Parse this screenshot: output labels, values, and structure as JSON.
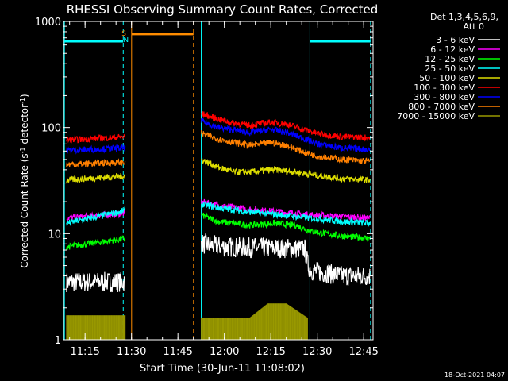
{
  "chart_data": {
    "type": "line",
    "title": "RHESSI Observing Summary Count Rates, Corrected",
    "xlabel": "Start Time (30-Jun-11 11:08:02)",
    "ylabel": "Corrected Count Rate (s⁻¹ detector⁻¹)",
    "ylabel_parts": {
      "main": "Corrected Count Rate (s",
      "sup1": "-1",
      "mid": " detector",
      "sup2": "-1",
      "end": ")"
    },
    "y_scale": "log",
    "ylim": [
      1,
      1000
    ],
    "xlim_minutes": [
      0,
      100
    ],
    "x_tick_labels": [
      "11:15",
      "11:30",
      "11:45",
      "12:00",
      "12:15",
      "12:30",
      "12:45"
    ],
    "x_tick_minutes": [
      6.97,
      21.97,
      36.97,
      51.97,
      66.97,
      81.97,
      96.97
    ],
    "y_tick_labels": [
      "1",
      "10",
      "100",
      "1000"
    ],
    "y_tick_values": [
      1,
      10,
      100,
      1000
    ],
    "legend_header": [
      "Det 1,3,4,5,6,9,",
      "Att 0"
    ],
    "legend_placement": "right",
    "footer_timestamp": "18-Oct-2021 04:07",
    "flags": [
      {
        "label": "S",
        "color": "#ff8c00",
        "minute": 19.5
      },
      {
        "label": "N",
        "color": "#00ffff",
        "minute": 20.2
      }
    ],
    "intervals": [
      {
        "kind": "night",
        "color": "#00ffff",
        "start": 0.3,
        "end": 19.3,
        "level": 650
      },
      {
        "kind": "saa",
        "color": "#ff8c00",
        "start": 22.0,
        "end": 42.0,
        "level": 760
      },
      {
        "kind": "night",
        "color": "#00ffff",
        "start": 79.6,
        "end": 99.2,
        "level": 650
      }
    ],
    "vlines": [
      {
        "minute": 0.3,
        "color": "#00ffff",
        "style": "solid"
      },
      {
        "minute": 19.3,
        "color": "#00ffff",
        "style": "dashed"
      },
      {
        "minute": 22.0,
        "color": "#ff8c00",
        "style": "solid"
      },
      {
        "minute": 42.0,
        "color": "#ff8c00",
        "style": "dashed"
      },
      {
        "minute": 44.5,
        "color": "#00ffff",
        "style": "solid"
      },
      {
        "minute": 79.6,
        "color": "#00ffff",
        "style": "solid"
      },
      {
        "minute": 99.2,
        "color": "#00ffff",
        "style": "dashed"
      }
    ],
    "series": [
      {
        "name": "3 - 6 keV",
        "color": "#ffffff",
        "seg1": {
          "start": 1,
          "end": 20,
          "values": [
            3.5,
            3.5
          ]
        },
        "seg2": {
          "start": 44.5,
          "end": 99,
          "x": [
            44.5,
            45,
            47,
            52,
            60,
            70,
            78,
            79,
            80,
            90,
            99
          ],
          "values": [
            8.5,
            8.0,
            7.8,
            7.5,
            7.4,
            7.3,
            7.2,
            5.0,
            4.5,
            4.0,
            4.0
          ]
        }
      },
      {
        "name": "6 - 12 keV",
        "color": "#ff00ff",
        "seg1": {
          "start": 1,
          "end": 20,
          "values": [
            14,
            15.5
          ]
        },
        "seg2": {
          "start": 44.5,
          "end": 99,
          "x": [
            44.5,
            50,
            60,
            70,
            80,
            90,
            99
          ],
          "values": [
            20,
            18.5,
            17,
            16,
            15,
            14.5,
            14
          ]
        }
      },
      {
        "name": "12 - 25 keV",
        "color": "#00ff00",
        "seg1": {
          "start": 1,
          "end": 20,
          "values": [
            7.5,
            9
          ]
        },
        "seg2": {
          "start": 44.5,
          "end": 99,
          "x": [
            44.5,
            50,
            60,
            68,
            75,
            80,
            90,
            99
          ],
          "values": [
            15,
            13,
            12,
            12.5,
            12,
            10.5,
            9.5,
            9
          ]
        }
      },
      {
        "name": "25 - 50 keV",
        "color": "#00ffff",
        "seg1": {
          "start": 1,
          "end": 20,
          "values": [
            12.5,
            16.5
          ]
        },
        "seg2": {
          "start": 44.5,
          "end": 99,
          "x": [
            44.5,
            50,
            60,
            70,
            80,
            90,
            99
          ],
          "values": [
            19,
            17.5,
            16,
            15,
            14,
            13,
            12.5
          ]
        }
      },
      {
        "name": "50 - 100 keV",
        "color": "#dddd00",
        "seg1": {
          "start": 1,
          "end": 20,
          "values": [
            32,
            35
          ]
        },
        "seg2": {
          "start": 44.5,
          "end": 99,
          "x": [
            44.5,
            50,
            55,
            60,
            68,
            75,
            80,
            90,
            99
          ],
          "values": [
            50,
            42,
            38,
            38,
            40,
            38,
            36,
            33,
            32
          ]
        }
      },
      {
        "name": "100 - 300 keV",
        "color": "#ff0000",
        "seg1": {
          "start": 1,
          "end": 20,
          "values": [
            76,
            82
          ]
        },
        "seg2": {
          "start": 44.5,
          "end": 99,
          "x": [
            44.5,
            50,
            55,
            60,
            67,
            72,
            78,
            82,
            90,
            99
          ],
          "values": [
            135,
            120,
            110,
            105,
            112,
            108,
            95,
            88,
            82,
            80
          ]
        }
      },
      {
        "name": "300 - 800 keV",
        "color": "#0000ff",
        "seg1": {
          "start": 1,
          "end": 20,
          "values": [
            61,
            64
          ]
        },
        "seg2": {
          "start": 44.5,
          "end": 99,
          "x": [
            44.5,
            50,
            55,
            60,
            67,
            72,
            78,
            82,
            90,
            99
          ],
          "values": [
            115,
            100,
            95,
            90,
            96,
            90,
            78,
            70,
            64,
            62
          ]
        }
      },
      {
        "name": "800 - 7000 keV",
        "color": "#ff8000",
        "seg1": {
          "start": 1,
          "end": 20,
          "values": [
            45,
            47
          ]
        },
        "seg2": {
          "start": 44.5,
          "end": 99,
          "x": [
            44.5,
            50,
            55,
            60,
            67,
            72,
            78,
            82,
            90,
            99
          ],
          "values": [
            88,
            78,
            72,
            68,
            72,
            68,
            58,
            54,
            50,
            48
          ]
        }
      },
      {
        "name": "7000 - 15000 keV",
        "color": "#999900",
        "seg1": {
          "start": 1,
          "end": 20,
          "values": [
            1.7,
            1.7
          ]
        },
        "seg2": {
          "start": 44.5,
          "end": 79,
          "x": [
            44.5,
            60,
            66,
            72,
            79
          ],
          "values": [
            1.6,
            1.6,
            2.2,
            2.2,
            1.6
          ]
        }
      }
    ]
  }
}
